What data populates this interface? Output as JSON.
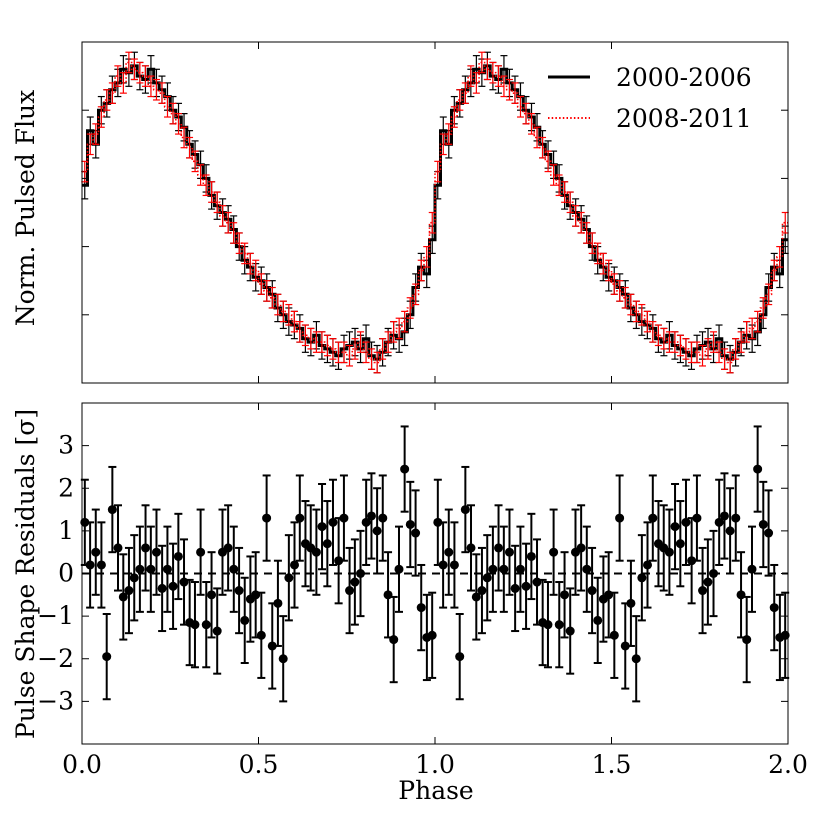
{
  "chart_data": [
    {
      "type": "line",
      "panel": "top",
      "ylabel": "Norm. Pulsed Flux",
      "xlim": [
        0,
        2
      ],
      "ylim": [
        0,
        1
      ],
      "x_ticks_labeled": false,
      "y_tick_values": [
        0.2,
        0.4,
        0.6,
        0.8,
        1.0
      ],
      "legend": {
        "placement": "top-right",
        "entries": [
          {
            "label": "2000-2006",
            "style": "solid",
            "color": "#000000"
          },
          {
            "label": "2008-2011",
            "style": "dotted",
            "color": "#ff0000"
          }
        ]
      },
      "bins_per_cycle": 64,
      "series": [
        {
          "name": "2000-2006",
          "color": "#000000",
          "yerr": 0.04,
          "values": [
            0.58,
            0.74,
            0.7,
            0.8,
            0.82,
            0.86,
            0.88,
            0.92,
            0.91,
            0.93,
            0.9,
            0.89,
            0.92,
            0.88,
            0.86,
            0.84,
            0.8,
            0.78,
            0.75,
            0.7,
            0.67,
            0.64,
            0.6,
            0.55,
            0.52,
            0.5,
            0.48,
            0.45,
            0.4,
            0.36,
            0.34,
            0.31,
            0.3,
            0.28,
            0.26,
            0.22,
            0.2,
            0.18,
            0.17,
            0.16,
            0.13,
            0.12,
            0.14,
            0.11,
            0.1,
            0.09,
            0.08,
            0.1,
            0.11,
            0.12,
            0.1,
            0.13,
            0.08,
            0.07,
            0.09,
            0.12,
            0.14,
            0.13,
            0.15,
            0.2,
            0.28,
            0.34,
            0.32,
            0.42
          ]
        },
        {
          "name": "2008-2011",
          "color": "#ff0000",
          "yerr": 0.03,
          "values": [
            0.62,
            0.7,
            0.73,
            0.78,
            0.83,
            0.85,
            0.9,
            0.88,
            0.94,
            0.92,
            0.91,
            0.9,
            0.87,
            0.86,
            0.85,
            0.81,
            0.79,
            0.76,
            0.72,
            0.69,
            0.65,
            0.61,
            0.58,
            0.56,
            0.53,
            0.49,
            0.47,
            0.44,
            0.41,
            0.38,
            0.35,
            0.33,
            0.29,
            0.27,
            0.25,
            0.23,
            0.21,
            0.2,
            0.18,
            0.15,
            0.14,
            0.13,
            0.12,
            0.12,
            0.11,
            0.1,
            0.09,
            0.09,
            0.08,
            0.1,
            0.12,
            0.09,
            0.07,
            0.06,
            0.1,
            0.12,
            0.15,
            0.16,
            0.18,
            0.22,
            0.26,
            0.33,
            0.37,
            0.47
          ]
        }
      ]
    },
    {
      "type": "scatter",
      "panel": "bottom",
      "xlabel": "Phase",
      "ylabel": "Pulse Shape Residuals [σ]",
      "xlim": [
        0,
        2
      ],
      "ylim": [
        -4,
        4
      ],
      "x_ticks": [
        0.0,
        0.5,
        1.0,
        1.5,
        2.0
      ],
      "x_tick_labels": [
        "0.0",
        "0.5",
        "1.0",
        "1.5",
        "2.0"
      ],
      "y_ticks": [
        -3,
        -2,
        -1,
        0,
        1,
        2,
        3
      ],
      "y_tick_labels": [
        "−3",
        "−2",
        "−1",
        "0",
        "1",
        "2",
        "3"
      ],
      "reference_line": {
        "y": 0,
        "style": "dashed"
      },
      "yerr": 1.0,
      "series": [
        {
          "name": "residuals",
          "x": [
            0.008,
            0.023,
            0.039,
            0.055,
            0.07,
            0.086,
            0.102,
            0.117,
            0.133,
            0.148,
            0.164,
            0.18,
            0.195,
            0.211,
            0.227,
            0.242,
            0.258,
            0.273,
            0.289,
            0.305,
            0.32,
            0.336,
            0.352,
            0.367,
            0.383,
            0.398,
            0.414,
            0.43,
            0.445,
            0.461,
            0.477,
            0.492,
            0.508,
            0.523,
            0.539,
            0.555,
            0.57,
            0.586,
            0.602,
            0.617,
            0.633,
            0.648,
            0.664,
            0.68,
            0.695,
            0.711,
            0.727,
            0.742,
            0.758,
            0.773,
            0.789,
            0.805,
            0.82,
            0.836,
            0.852,
            0.867,
            0.883,
            0.898,
            0.914,
            0.93,
            0.945,
            0.961,
            0.977,
            0.992
          ],
          "values": [
            1.2,
            0.2,
            0.5,
            0.2,
            -1.95,
            1.5,
            0.6,
            -0.55,
            -0.4,
            -0.1,
            0.1,
            0.6,
            0.1,
            0.5,
            -0.35,
            0.1,
            -0.3,
            0.4,
            -0.2,
            -1.15,
            -1.2,
            0.5,
            -1.2,
            -0.5,
            -1.35,
            0.5,
            0.6,
            0.1,
            -0.4,
            -1.1,
            -0.6,
            -0.5,
            -1.45,
            1.3,
            -1.7,
            -0.7,
            -2.0,
            -0.1,
            0.2,
            1.3,
            0.7,
            0.6,
            0.5,
            1.1,
            0.7,
            1.2,
            0.3,
            1.3,
            -0.4,
            -0.2,
            0.0,
            1.2,
            1.35,
            1.0,
            1.3,
            -0.5,
            -1.55,
            0.1,
            2.45,
            1.15,
            0.95,
            -0.8,
            -1.5,
            -1.45
          ]
        }
      ]
    }
  ]
}
